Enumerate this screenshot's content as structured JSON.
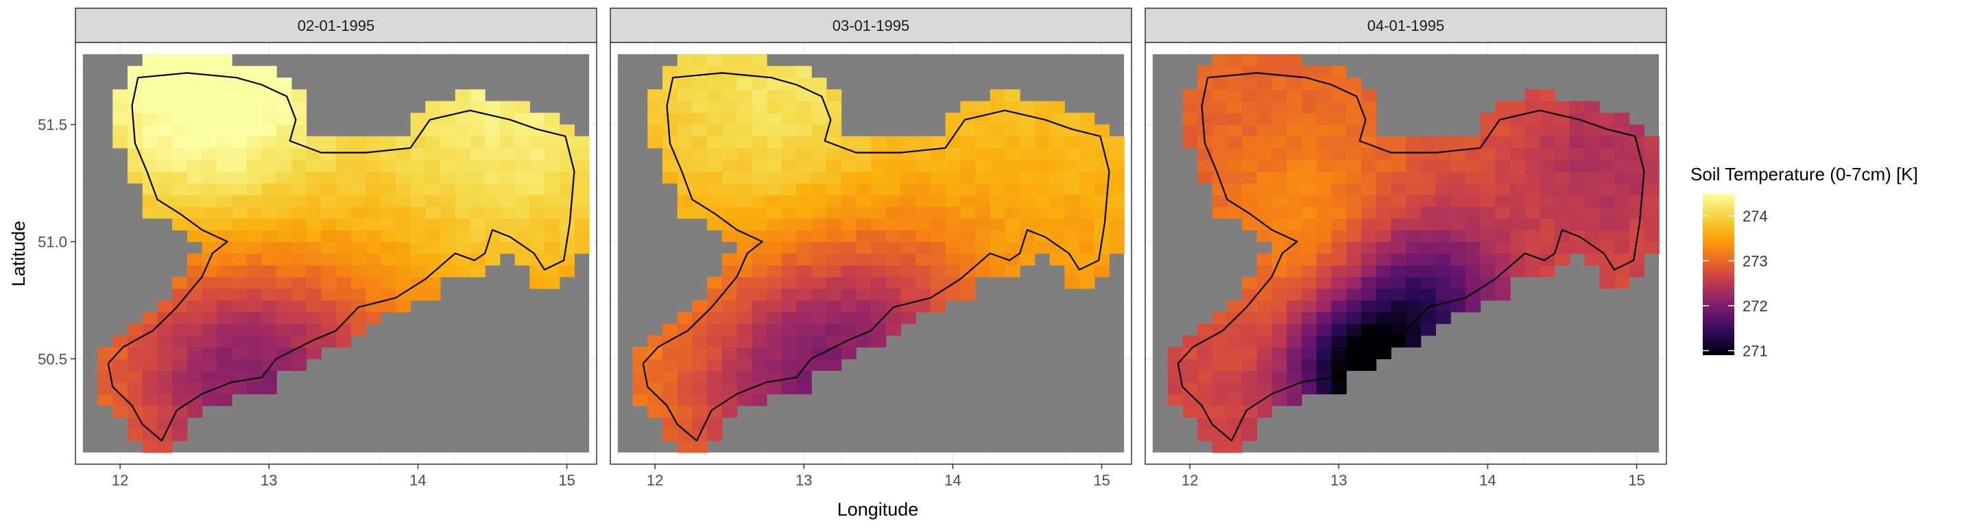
{
  "chart_data": {
    "type": "heatmap",
    "xlabel": "Longitude",
    "ylabel": "Latitude",
    "legend_title": "Soil Temperature (0-7cm) [K]",
    "legend_placement": "right",
    "legend_ticks": [
      271,
      272,
      273,
      274
    ],
    "color_range": [
      270.9,
      274.5
    ],
    "xlim": [
      11.7,
      15.2
    ],
    "ylim": [
      50.05,
      51.85
    ],
    "x_ticks": [
      12,
      13,
      14,
      15
    ],
    "y_ticks": [
      50.5,
      51.0,
      51.5
    ],
    "y_tick_labels": [
      "50.5",
      "51.0",
      "51.5"
    ],
    "grid": true,
    "facets": [
      "02-01-1995",
      "03-01-1995",
      "04-01-1995"
    ],
    "grid_extent": {
      "lon": [
        11.75,
        15.15
      ],
      "lat": [
        50.1,
        51.8
      ]
    },
    "grid_step": {
      "lon": 0.1,
      "lat": 0.05
    },
    "missing_color": "#7f7f7f",
    "outline_color": "#000000",
    "panels": [
      {
        "label": "02-01-1995",
        "base_temp": 273.6,
        "lat_gradient_per_deg": 0.65,
        "lon_gradient_per_deg": 0.0,
        "hotspots": [
          {
            "lon": 12.6,
            "lat": 51.55,
            "sigma": 0.35,
            "delta": 0.7
          },
          {
            "lon": 14.6,
            "lat": 51.35,
            "sigma": 0.35,
            "delta": 0.4
          },
          {
            "lon": 13.1,
            "lat": 50.45,
            "sigma": 0.35,
            "delta": -0.9
          },
          {
            "lon": 12.5,
            "lat": 50.55,
            "sigma": 0.3,
            "delta": -0.5
          }
        ]
      },
      {
        "label": "03-01-1995",
        "base_temp": 273.5,
        "lat_gradient_per_deg": 0.45,
        "lon_gradient_per_deg": 0.0,
        "hotspots": [
          {
            "lon": 12.8,
            "lat": 51.5,
            "sigma": 0.35,
            "delta": 0.4
          },
          {
            "lon": 13.0,
            "lat": 50.45,
            "sigma": 0.35,
            "delta": -1.1
          },
          {
            "lon": 13.6,
            "lat": 50.75,
            "sigma": 0.3,
            "delta": -0.5
          }
        ]
      },
      {
        "label": "04-01-1995",
        "base_temp": 272.8,
        "lat_gradient_per_deg": 0.2,
        "lon_gradient_per_deg": 0.0,
        "hotspots": [
          {
            "lon": 13.1,
            "lat": 50.45,
            "sigma": 0.2,
            "delta": -1.7
          },
          {
            "lon": 13.55,
            "lat": 50.75,
            "sigma": 0.25,
            "delta": -1.3
          },
          {
            "lon": 12.8,
            "lat": 51.05,
            "sigma": 0.3,
            "delta": 0.5
          },
          {
            "lon": 14.8,
            "lat": 51.4,
            "sigma": 0.3,
            "delta": -0.5
          }
        ]
      }
    ],
    "region_outline": [
      [
        12.12,
        51.7
      ],
      [
        12.45,
        51.72
      ],
      [
        12.78,
        51.7
      ],
      [
        12.95,
        51.67
      ],
      [
        13.12,
        51.62
      ],
      [
        13.18,
        51.52
      ],
      [
        13.14,
        51.43
      ],
      [
        13.35,
        51.38
      ],
      [
        13.65,
        51.38
      ],
      [
        13.95,
        51.4
      ],
      [
        14.08,
        51.52
      ],
      [
        14.35,
        51.56
      ],
      [
        14.62,
        51.52
      ],
      [
        14.8,
        51.48
      ],
      [
        14.99,
        51.45
      ],
      [
        15.05,
        51.3
      ],
      [
        15.02,
        51.08
      ],
      [
        14.98,
        50.92
      ],
      [
        14.85,
        50.88
      ],
      [
        14.78,
        50.95
      ],
      [
        14.62,
        51.02
      ],
      [
        14.5,
        51.05
      ],
      [
        14.45,
        50.95
      ],
      [
        14.38,
        50.92
      ],
      [
        14.25,
        50.95
      ],
      [
        14.05,
        50.84
      ],
      [
        13.85,
        50.76
      ],
      [
        13.6,
        50.72
      ],
      [
        13.45,
        50.62
      ],
      [
        13.3,
        50.58
      ],
      [
        13.05,
        50.5
      ],
      [
        12.95,
        50.42
      ],
      [
        12.75,
        50.4
      ],
      [
        12.55,
        50.35
      ],
      [
        12.38,
        50.28
      ],
      [
        12.28,
        50.15
      ],
      [
        12.15,
        50.22
      ],
      [
        12.08,
        50.3
      ],
      [
        11.95,
        50.38
      ],
      [
        11.92,
        50.48
      ],
      [
        12.02,
        50.55
      ],
      [
        12.22,
        50.62
      ],
      [
        12.38,
        50.72
      ],
      [
        12.55,
        50.85
      ],
      [
        12.62,
        50.95
      ],
      [
        12.72,
        51.0
      ],
      [
        12.55,
        51.05
      ],
      [
        12.4,
        51.12
      ],
      [
        12.25,
        51.18
      ],
      [
        12.18,
        51.3
      ],
      [
        12.1,
        51.42
      ],
      [
        12.08,
        51.58
      ],
      [
        12.12,
        51.7
      ]
    ]
  }
}
